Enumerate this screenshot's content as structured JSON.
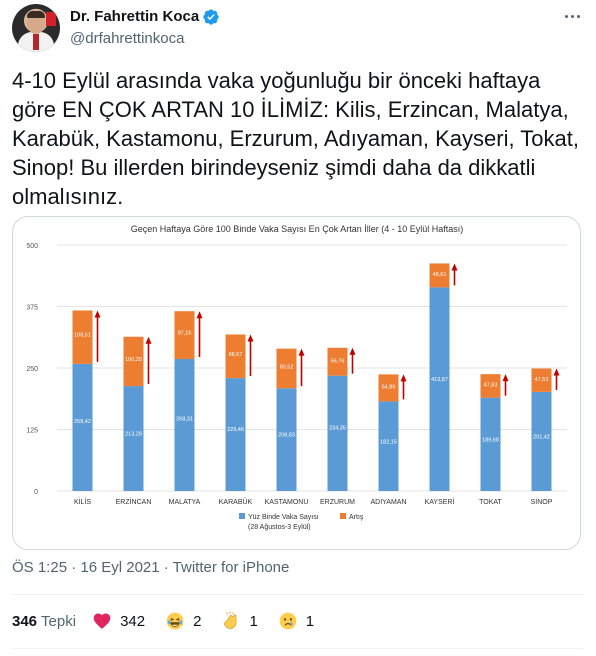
{
  "author": {
    "display_name": "Dr. Fahrettin Koca",
    "handle": "@drfahrettinkoca"
  },
  "tweet": {
    "text": "4-10 Eylül arasında vaka yoğunluğu bir önceki haftaya göre EN ÇOK ARTAN 10 İLİMİZ: Kilis, Erzincan, Malatya, Karabük, Kastamonu, Erzurum, Adıyaman, Kayseri, Tokat, Sinop! Bu illerden birindeyseniz şimdi daha da dikkatli olmalısınız.",
    "meta": "ÖS 1:25 · 16 Eyl 2021 · Twitter for iPhone"
  },
  "reactions": {
    "total_count": "346",
    "total_label": "Tepki",
    "items": [
      {
        "icon": "heart-icon",
        "count": "342"
      },
      {
        "icon": "laughing-face-icon",
        "count": "2"
      },
      {
        "icon": "clapping-hands-icon",
        "count": "1"
      },
      {
        "icon": "crying-face-icon",
        "count": "1"
      }
    ]
  },
  "colors": {
    "base": "#5b9bd5",
    "increase": "#ed7d31",
    "arrow": "#c00000",
    "handle": "#536471",
    "verified": "#1d9bf0"
  },
  "chart_data": {
    "type": "bar",
    "stacked": true,
    "title": "Geçen Haftaya Göre 100 Binde Vaka Sayısı En Çok Artan İller (4 - 10 Eylül Haftası)",
    "categories": [
      "KİLİS",
      "ERZİNCAN",
      "MALATYA",
      "KARABÜK",
      "KASTAMONU",
      "ERZURUM",
      "ADIYAMAN",
      "KAYSERİ",
      "TOKAT",
      "SİNOP"
    ],
    "series": [
      {
        "name": "Yüz Binde Vaka Sayısı (28 Ağustos-3 Eylül)",
        "values": [
          258.42,
          213.28,
          268.31,
          229.46,
          208.83,
          234.35,
          182.15,
          413.87,
          189.68,
          201.42
        ]
      },
      {
        "name": "Artış",
        "values": [
          108.51,
          100.25,
          97.15,
          88.67,
          80.52,
          56.76,
          54.86,
          48.61,
          47.83,
          47.53
        ]
      }
    ],
    "value_labels": {
      "base": [
        "258,42",
        "213,28",
        "268,31",
        "229,46",
        "208,83",
        "234,35",
        "182,15",
        "413,87",
        "189,68",
        "201,42"
      ],
      "increase": [
        "108,51",
        "100,25",
        "97,15",
        "88,67",
        "80,52",
        "56,76",
        "54,86",
        "48,61",
        "47,83",
        "47,53"
      ]
    },
    "y_ticks": [
      "0",
      "125",
      "250",
      "375",
      "500"
    ],
    "ylim": [
      0,
      500
    ],
    "grid": true,
    "legend": {
      "position": "bottom",
      "entries": [
        "Yüz Binde Vaka Sayısı",
        "Artış"
      ],
      "subtitle": "(28 Ağustos-3 Eylül)"
    }
  }
}
